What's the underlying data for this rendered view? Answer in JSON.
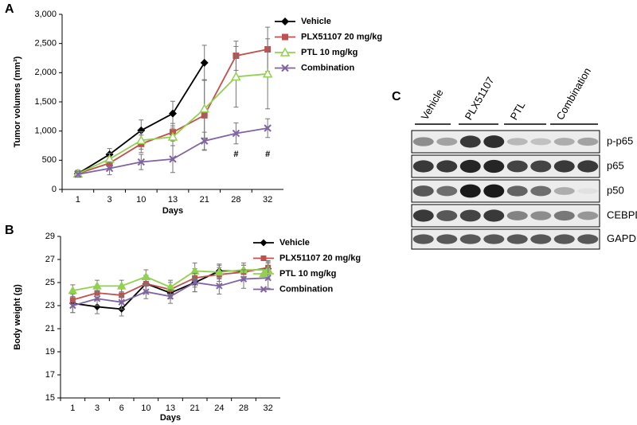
{
  "chart_data": [
    {
      "type": "line",
      "panel": "A",
      "xlabel": "Days",
      "ylabel": "Tumor volumes (mm³)",
      "categories": [
        "1",
        "3",
        "10",
        "13",
        "21",
        "28",
        "32"
      ],
      "ylim": [
        0,
        3000
      ],
      "yticks": [
        0,
        500,
        {
          "value": 1000,
          "label": "1,000"
        },
        {
          "value": 1500,
          "label": "1,500"
        },
        {
          "value": 2000,
          "label": "2,000"
        },
        {
          "value": 2500,
          "label": "2,500"
        },
        {
          "value": 3000,
          "label": "3,000"
        }
      ],
      "legend": "upper right",
      "series": [
        {
          "name": "Vehicle",
          "color": "#000000",
          "marker": "diamond",
          "values": [
            270,
            600,
            1010,
            1300,
            2170,
            null,
            null
          ],
          "errors": [
            60,
            100,
            180,
            210,
            300,
            null,
            null
          ]
        },
        {
          "name": "PLX51107 20 mg/kg",
          "color": "#c0504d",
          "marker": "square",
          "values": [
            270,
            450,
            780,
            980,
            1270,
            2290,
            2400
          ],
          "errors": [
            50,
            100,
            150,
            150,
            600,
            250,
            380
          ]
        },
        {
          "name": "PTL 10 mg/kg",
          "color": "#92d050",
          "marker": "triangle-open",
          "values": [
            270,
            520,
            840,
            900,
            1380,
            1930,
            1980
          ],
          "errors": [
            50,
            100,
            150,
            150,
            500,
            520,
            600
          ]
        },
        {
          "name": "Combination",
          "color": "#8064a2",
          "marker": "x",
          "values": [
            260,
            360,
            470,
            520,
            830,
            960,
            1050
          ],
          "errors": [
            50,
            110,
            130,
            230,
            150,
            180,
            160
          ]
        }
      ],
      "annotations": [
        {
          "text": "#",
          "x": "28",
          "y": 600
        },
        {
          "text": "#",
          "x": "32",
          "y": 600
        }
      ]
    },
    {
      "type": "line",
      "panel": "B",
      "xlabel": "Days",
      "ylabel": "Body weight (g)",
      "categories": [
        "1",
        "3",
        "6",
        "10",
        "13",
        "21",
        "24",
        "28",
        "32"
      ],
      "ylim": [
        15,
        29
      ],
      "yticks": [
        15,
        17,
        19,
        21,
        23,
        25,
        27,
        29
      ],
      "legend": "upper right",
      "series": [
        {
          "name": "Vehicle",
          "color": "#000000",
          "marker": "diamond",
          "values": [
            23.2,
            22.9,
            22.7,
            24.9,
            24.1,
            25.0,
            26.0,
            26.0,
            26.2
          ],
          "errors": [
            0.8,
            0.6,
            0.6,
            0.7,
            0.5,
            0.8,
            0.6,
            0.5,
            0.5
          ]
        },
        {
          "name": "PLX51107 20 mg/kg",
          "color": "#c0504d",
          "marker": "square",
          "values": [
            23.5,
            24.1,
            23.9,
            24.9,
            24.4,
            25.4,
            25.7,
            25.9,
            26.3
          ],
          "errors": [
            0.6,
            0.6,
            0.6,
            0.7,
            0.6,
            0.8,
            0.6,
            0.6,
            0.6
          ]
        },
        {
          "name": "PTL 10 mg/kg",
          "color": "#92d050",
          "marker": "triangle",
          "values": [
            24.3,
            24.7,
            24.7,
            25.5,
            24.6,
            26.0,
            25.9,
            26.1,
            26.1
          ],
          "errors": [
            0.5,
            0.5,
            0.5,
            0.6,
            0.6,
            0.7,
            0.6,
            0.6,
            0.7
          ]
        },
        {
          "name": "Combination",
          "color": "#8064a2",
          "marker": "x",
          "values": [
            23.0,
            23.6,
            23.3,
            24.2,
            23.8,
            25.0,
            24.7,
            25.3,
            25.4
          ],
          "errors": [
            0.6,
            0.6,
            0.6,
            0.6,
            0.6,
            0.8,
            0.7,
            0.8,
            0.9
          ]
        }
      ]
    }
  ],
  "blot": {
    "panel": "C",
    "groups": [
      "Vehicle",
      "PLX51107",
      "PTL",
      "Combination"
    ],
    "rows": [
      "p-p65",
      "p65",
      "p50",
      "CEBPD",
      "GAPDH"
    ]
  }
}
